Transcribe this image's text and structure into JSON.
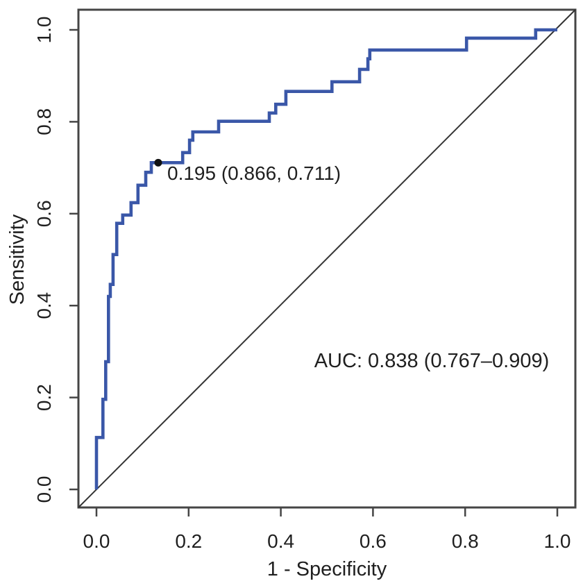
{
  "chart_data": {
    "type": "line",
    "variant": "roc_step_curve",
    "title": "",
    "xlabel": "1 - Specificity",
    "ylabel": "Sensitivity",
    "xlim": [
      0.0,
      1.0
    ],
    "ylim": [
      0.0,
      1.0
    ],
    "grid": false,
    "legend": "none",
    "x_ticks": [
      {
        "value": 0.0,
        "label": "0.0"
      },
      {
        "value": 0.2,
        "label": "0.2"
      },
      {
        "value": 0.4,
        "label": "0.4"
      },
      {
        "value": 0.6,
        "label": "0.6"
      },
      {
        "value": 0.8,
        "label": "0.8"
      },
      {
        "value": 1.0,
        "label": "1.0"
      }
    ],
    "y_ticks": [
      {
        "value": 0.0,
        "label": "0.0"
      },
      {
        "value": 0.2,
        "label": "0.2"
      },
      {
        "value": 0.4,
        "label": "0.4"
      },
      {
        "value": 0.6,
        "label": "0.6"
      },
      {
        "value": 0.8,
        "label": "0.8"
      },
      {
        "value": 1.0,
        "label": "1.0"
      }
    ],
    "series": [
      {
        "name": "ROC curve",
        "draw_style": "step",
        "color": "#3a57a8",
        "points": [
          [
            0.0,
            0.0
          ],
          [
            0.0,
            0.113
          ],
          [
            0.014,
            0.113
          ],
          [
            0.014,
            0.196
          ],
          [
            0.02,
            0.196
          ],
          [
            0.02,
            0.278
          ],
          [
            0.026,
            0.278
          ],
          [
            0.026,
            0.42
          ],
          [
            0.03,
            0.42
          ],
          [
            0.03,
            0.446
          ],
          [
            0.036,
            0.446
          ],
          [
            0.036,
            0.511
          ],
          [
            0.044,
            0.511
          ],
          [
            0.044,
            0.579
          ],
          [
            0.057,
            0.579
          ],
          [
            0.057,
            0.597
          ],
          [
            0.075,
            0.597
          ],
          [
            0.075,
            0.624
          ],
          [
            0.09,
            0.624
          ],
          [
            0.09,
            0.662
          ],
          [
            0.107,
            0.662
          ],
          [
            0.107,
            0.69
          ],
          [
            0.119,
            0.69
          ],
          [
            0.119,
            0.711
          ],
          [
            0.134,
            0.711
          ],
          [
            0.187,
            0.711
          ],
          [
            0.187,
            0.733
          ],
          [
            0.202,
            0.733
          ],
          [
            0.202,
            0.76
          ],
          [
            0.209,
            0.76
          ],
          [
            0.209,
            0.778
          ],
          [
            0.265,
            0.778
          ],
          [
            0.265,
            0.801
          ],
          [
            0.375,
            0.801
          ],
          [
            0.375,
            0.819
          ],
          [
            0.389,
            0.819
          ],
          [
            0.389,
            0.838
          ],
          [
            0.411,
            0.838
          ],
          [
            0.411,
            0.866
          ],
          [
            0.511,
            0.866
          ],
          [
            0.511,
            0.887
          ],
          [
            0.571,
            0.887
          ],
          [
            0.571,
            0.914
          ],
          [
            0.589,
            0.914
          ],
          [
            0.589,
            0.937
          ],
          [
            0.593,
            0.937
          ],
          [
            0.593,
            0.956
          ],
          [
            0.803,
            0.956
          ],
          [
            0.803,
            0.982
          ],
          [
            0.953,
            0.982
          ],
          [
            0.953,
            1.0
          ],
          [
            1.0,
            1.0
          ]
        ]
      }
    ],
    "reference_line": {
      "name": "chance diagonal",
      "from": [
        0.0,
        0.0
      ],
      "to": [
        1.0,
        1.0
      ],
      "color": "#333333"
    },
    "marked_point": {
      "x": 0.134,
      "y": 0.711,
      "threshold": 0.195,
      "specificity": 0.866,
      "sensitivity": 0.711,
      "label": "0.195 (0.866, 0.711)",
      "color": "#111111"
    },
    "auc_annotation": {
      "text": "AUC: 0.838 (0.767–0.909)",
      "auc": 0.838,
      "ci_low": 0.767,
      "ci_high": 0.909,
      "color": "#3a57a8"
    }
  },
  "colors": {
    "background": "#ffffff",
    "axis": "#454545",
    "text": "#1f1f1f",
    "curve": "#3a57a8"
  }
}
